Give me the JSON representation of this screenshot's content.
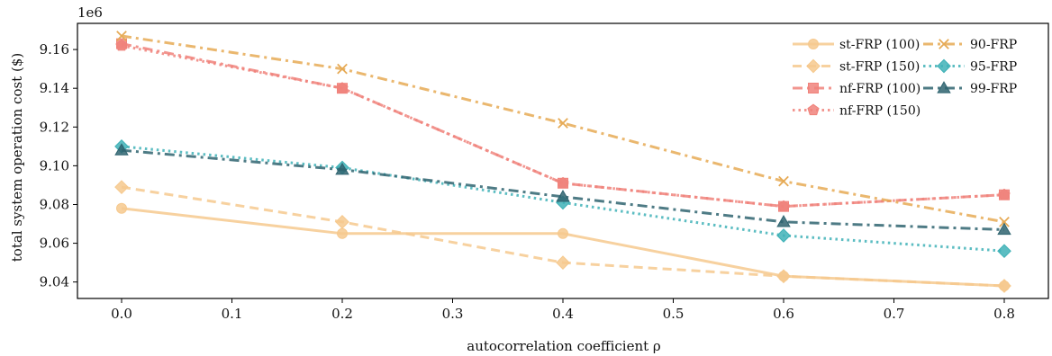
{
  "chart_data": {
    "type": "line",
    "multiplier_label": "1e6",
    "xlabel": "autocorrelation coefficient ρ",
    "ylabel": "total system operation cost ($)",
    "x": [
      0.0,
      0.2,
      0.4,
      0.6,
      0.8
    ],
    "xlim": [
      -0.04,
      0.84
    ],
    "ylim": [
      9.0315,
      9.1735
    ],
    "xticks": [
      0.0,
      0.1,
      0.2,
      0.3,
      0.4,
      0.5,
      0.6,
      0.7,
      0.8
    ],
    "xtick_labels": [
      "0.0",
      "0.1",
      "0.2",
      "0.3",
      "0.4",
      "0.5",
      "0.6",
      "0.7",
      "0.8"
    ],
    "yticks": [
      9.04,
      9.06,
      9.08,
      9.1,
      9.12,
      9.14,
      9.16
    ],
    "ytick_labels": [
      "9.04",
      "9.06",
      "9.08",
      "9.10",
      "9.12",
      "9.14",
      "9.16"
    ],
    "grid": false,
    "legend_position": "top-right",
    "legend_columns": 2,
    "series": [
      {
        "name": "st-FRP (100)",
        "values": [
          9.078,
          9.065,
          9.065,
          9.043,
          9.038
        ],
        "color": "#f6c98e",
        "dash": "solid",
        "marker": "circle"
      },
      {
        "name": "st-FRP (150)",
        "values": [
          9.089,
          9.071,
          9.05,
          9.043,
          9.038
        ],
        "color": "#f6c98e",
        "dash": "dashed",
        "marker": "diamond"
      },
      {
        "name": "nf-FRP (100)",
        "values": [
          9.163,
          9.14,
          9.091,
          9.079,
          9.085
        ],
        "color": "#f0827b",
        "dash": "dashdot",
        "marker": "square"
      },
      {
        "name": "nf-FRP (150)",
        "values": [
          9.162,
          9.14,
          9.091,
          9.079,
          9.085
        ],
        "color": "#f0827b",
        "dash": "dotted",
        "marker": "pentagon"
      },
      {
        "name": "90-FRP",
        "values": [
          9.167,
          9.15,
          9.122,
          9.092,
          9.071
        ],
        "color": "#e6aa55",
        "dash": "dashdot",
        "marker": "x"
      },
      {
        "name": "95-FRP",
        "values": [
          9.11,
          9.099,
          9.081,
          9.064,
          9.056
        ],
        "color": "#3fb2b7",
        "dash": "dotted",
        "marker": "diamond"
      },
      {
        "name": "99-FRP",
        "values": [
          9.108,
          9.098,
          9.084,
          9.071,
          9.067
        ],
        "color": "#2f6470",
        "dash": "dashdot",
        "marker": "triangle"
      }
    ]
  }
}
